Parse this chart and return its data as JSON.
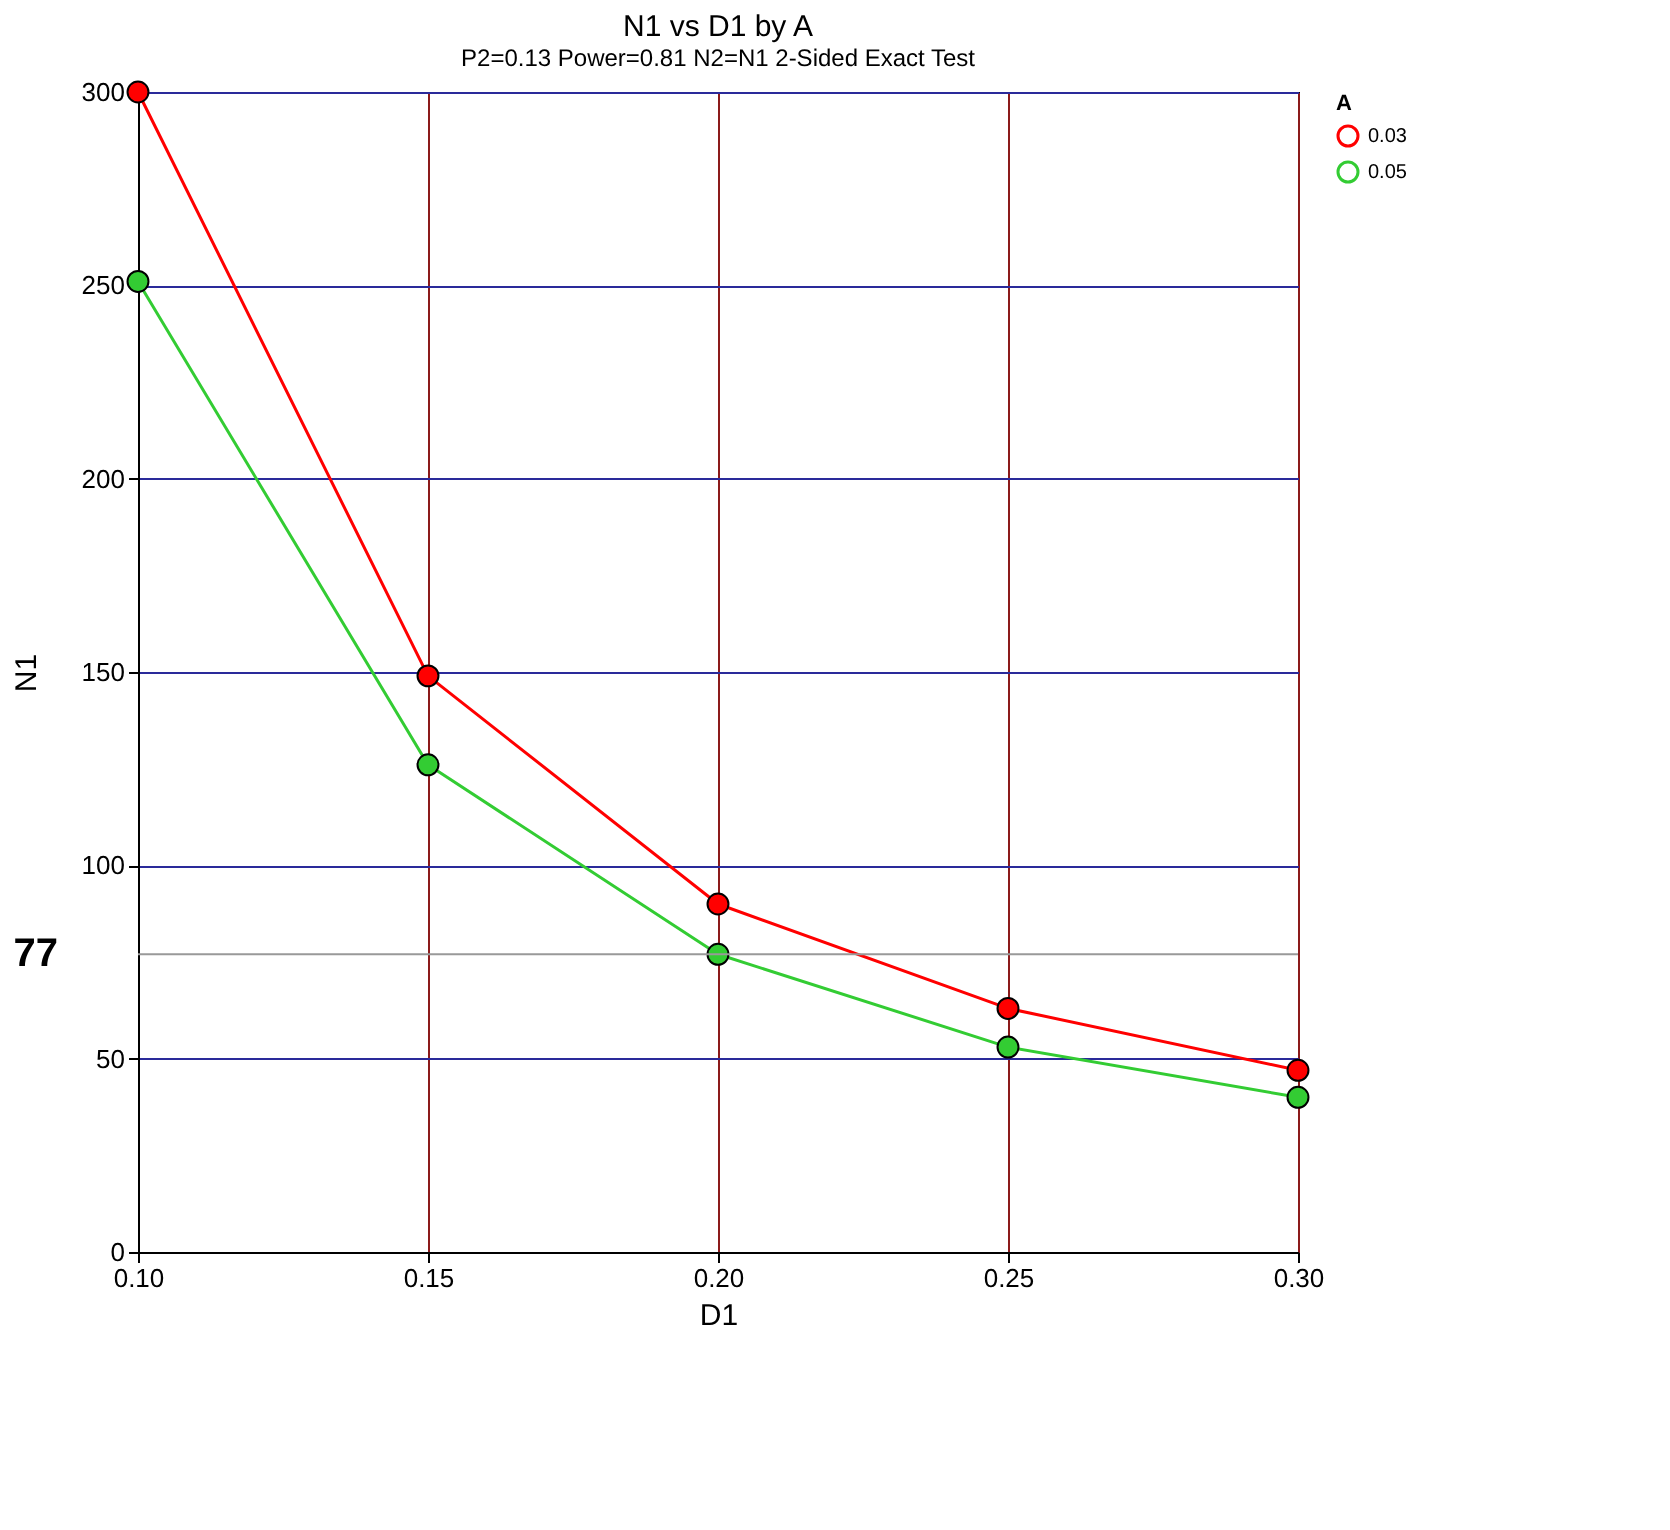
{
  "chart_data": {
    "type": "line",
    "title": "N1 vs D1 by A",
    "subtitle": "P2=0.13 Power=0.81 N2=N1 2-Sided Exact Test",
    "xlabel": "D1",
    "ylabel": "N1",
    "legend_title": "A",
    "x": [
      0.1,
      0.15,
      0.2,
      0.25,
      0.3
    ],
    "series": [
      {
        "name": "0.03",
        "color": "#ff0000",
        "values": [
          300,
          149,
          90,
          63,
          47
        ]
      },
      {
        "name": "0.05",
        "color": "#33cc33",
        "values": [
          251,
          126,
          77,
          53,
          40
        ]
      }
    ],
    "xlim": [
      0.1,
      0.3
    ],
    "xticks": [
      {
        "value": 0.1,
        "label": "0.10"
      },
      {
        "value": 0.15,
        "label": "0.15"
      },
      {
        "value": 0.2,
        "label": "0.20"
      },
      {
        "value": 0.25,
        "label": "0.25"
      },
      {
        "value": 0.3,
        "label": "0.30"
      }
    ],
    "ylim": [
      0,
      300
    ],
    "yticks": [
      0,
      50,
      100,
      150,
      200,
      250,
      300
    ],
    "ref_lines": [
      {
        "axis": "y",
        "value": 77,
        "label": "77",
        "color": "#999999"
      }
    ],
    "grid": true,
    "legend": "right",
    "marker": "circle",
    "line_style": "solid"
  }
}
